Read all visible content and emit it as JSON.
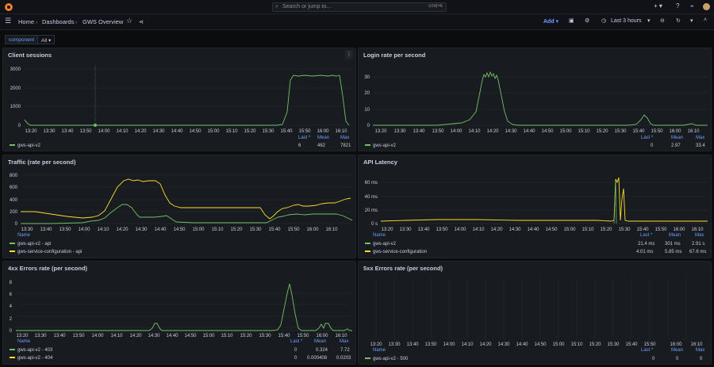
{
  "topbar": {
    "search_placeholder": "Search or jump to...",
    "search_shortcut": "cmd+k",
    "plus": "+ ▾"
  },
  "breadcrumb": [
    "Home",
    "Dashboards",
    "GWS Overview"
  ],
  "toolbar": {
    "add_label": "Add",
    "time_range": "Last 3 hours"
  },
  "variables": {
    "component_label": "component",
    "component_value": "All"
  },
  "colors": {
    "green": "#73bf69",
    "yellow": "#fade2a",
    "legend_header": "#6e9fff"
  },
  "legend_headers": {
    "name": "Name",
    "last": "Last *",
    "mean": "Mean",
    "max": "Max"
  },
  "panels": [
    {
      "id": "client-sessions",
      "title": "Client sessions",
      "y_ticks": [
        "0",
        "1000",
        "2000",
        "3000"
      ],
      "x_ticks": [
        "13:20",
        "13:30",
        "13:40",
        "13:50",
        "14:00",
        "14:10",
        "14:20",
        "14:30",
        "14:40",
        "14:50",
        "15:00",
        "15:10",
        "15:20",
        "15:30",
        "15:40",
        "15:50",
        "16:00",
        "16:10"
      ],
      "series": [
        {
          "name": "gws-api-v2",
          "color": "green",
          "last": "6",
          "mean": "462",
          "max": "7821"
        }
      ]
    },
    {
      "id": "login-rate",
      "title": "Login rate per second",
      "y_ticks": [
        "0",
        "10",
        "20",
        "30"
      ],
      "x_ticks": [
        "13:20",
        "13:30",
        "13:40",
        "13:50",
        "14:00",
        "14:10",
        "14:20",
        "14:30",
        "14:40",
        "14:50",
        "15:00",
        "15:10",
        "15:20",
        "15:30",
        "15:40",
        "15:50",
        "16:00",
        "16:10"
      ],
      "series": [
        {
          "name": "gws-api-v2",
          "color": "green",
          "last": "0",
          "mean": "2.97",
          "max": "33.4"
        }
      ]
    },
    {
      "id": "traffic",
      "title": "Traffic (rate per second)",
      "y_ticks": [
        "0",
        "200",
        "400",
        "600",
        "800"
      ],
      "x_ticks": [
        "13:30",
        "13:40",
        "13:50",
        "14:00",
        "14:10",
        "14:20",
        "14:30",
        "14:40",
        "14:50",
        "15:00",
        "15:10",
        "15:20",
        "15:30",
        "15:40",
        "15:50",
        "16:00",
        "16:10"
      ],
      "series": [
        {
          "name": "gws-api-v2 - api",
          "color": "green"
        },
        {
          "name": "gws-service-configuration - api",
          "color": "yellow"
        }
      ]
    },
    {
      "id": "api-latency",
      "title": "API Latency",
      "y_ticks": [
        "0 s",
        "20 ms",
        "40 ms",
        "60 ms"
      ],
      "x_ticks": [
        "13:20",
        "13:30",
        "13:40",
        "13:50",
        "14:00",
        "14:10",
        "14:20",
        "14:30",
        "14:40",
        "14:50",
        "15:00",
        "15:10",
        "15:20",
        "15:30",
        "15:40",
        "15:50",
        "16:00",
        "16:10"
      ],
      "series": [
        {
          "name": "gws-api-v2",
          "color": "green",
          "last": "21.4 ms",
          "mean": "301 ms",
          "max": "2.91 s"
        },
        {
          "name": "gws-service-configuration",
          "color": "yellow",
          "last": "4.01 ms",
          "mean": "5.85 ms",
          "max": "67.6 ms"
        }
      ]
    },
    {
      "id": "errors-4xx",
      "title": "4xx Errors rate (per second)",
      "y_ticks": [
        "0",
        "2",
        "4",
        "6",
        "8"
      ],
      "x_ticks": [
        "13:20",
        "13:30",
        "13:40",
        "13:50",
        "14:00",
        "14:10",
        "14:20",
        "14:30",
        "14:40",
        "14:50",
        "15:00",
        "15:10",
        "15:20",
        "15:30",
        "15:40",
        "15:50",
        "16:00",
        "16:10"
      ],
      "series": [
        {
          "name": "gws-api-v2 - 403",
          "color": "green",
          "last": "0",
          "mean": "0.324",
          "max": "7.72"
        },
        {
          "name": "gws-api-v2 - 404",
          "color": "yellow",
          "last": "0",
          "mean": "0.000408",
          "max": "0.0203"
        }
      ]
    },
    {
      "id": "errors-5xx",
      "title": "5xx Errors rate (per second)",
      "y_ticks": [],
      "x_ticks": [
        "13:20",
        "13:30",
        "13:40",
        "13:50",
        "14:00",
        "14:10",
        "14:20",
        "14:30",
        "14:40",
        "14:50",
        "15:00",
        "15:10",
        "15:20",
        "15:30",
        "15:40",
        "15:50",
        "16:00",
        "16:10"
      ],
      "series": [
        {
          "name": "gws-api-v2 - 500",
          "color": "green",
          "last": "0",
          "mean": "0",
          "max": "0"
        }
      ]
    }
  ]
}
